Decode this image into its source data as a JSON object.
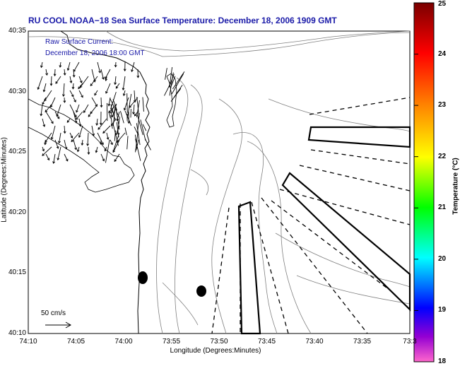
{
  "title": "RU COOL  NOAA−18  Sea Surface Temperature:  December 18, 2006 1909 GMT",
  "inset": {
    "line1": "Raw Surface Current:",
    "line2": "December 18, 2006 18:00 GMT"
  },
  "x_axis": {
    "label": "Longitude (Degrees:Minutes)",
    "ticks": [
      "74:10",
      "74:05",
      "74:00",
      "73:55",
      "73:50",
      "73:45",
      "73:40",
      "73:35",
      "73:3"
    ]
  },
  "y_axis": {
    "label": "Latitude (Degrees:Minutes)",
    "ticks": [
      "40:35",
      "40:30",
      "40:25",
      "40:20",
      "40:15",
      "40:10"
    ]
  },
  "scale_bar": {
    "label": "50 cm/s"
  },
  "colorbar": {
    "label": "Temperature (°C)",
    "ticks": [
      "25",
      "24",
      "23",
      "22",
      "21",
      "20",
      "19",
      "18"
    ],
    "colors": [
      "#7a0000",
      "#ff0000",
      "#ff7f00",
      "#ffff00",
      "#00ff00",
      "#00ffff",
      "#0000ff",
      "#9400d3",
      "#ff66cc"
    ]
  }
}
